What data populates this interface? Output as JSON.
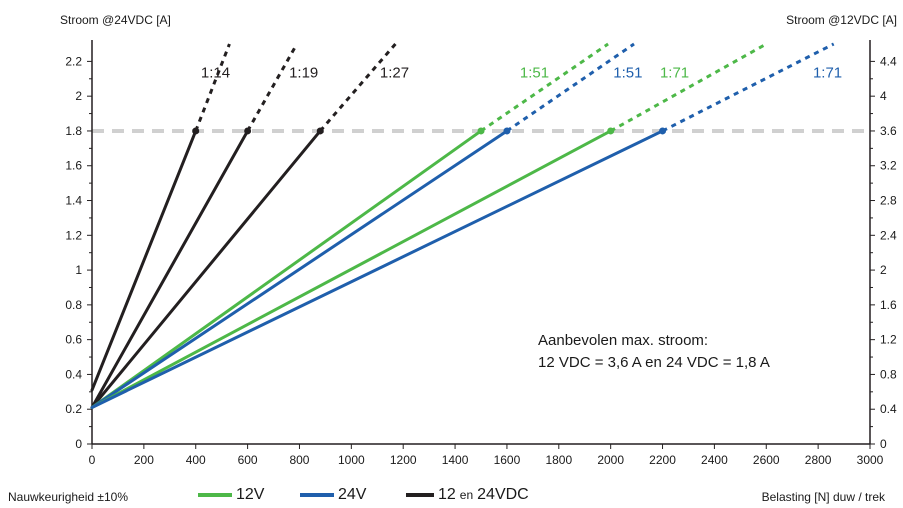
{
  "labels": {
    "left_axis_title": "Stroom @24VDC [A]",
    "right_axis_title": "Stroom @12VDC [A]",
    "x_axis_title": "Belasting [N] duw / trek",
    "accuracy_note": "Nauwkeurigheid ±10%"
  },
  "annotation": {
    "line1": "Aanbevolen max. stroom:",
    "line2": "12 VDC = 3,6 A en 24 VDC = 1,8 A"
  },
  "legend": [
    {
      "label": "12V",
      "color": "#4db848"
    },
    {
      "label": "24V",
      "color": "#1f5fac"
    },
    {
      "label": "12",
      "small": "en",
      "suffix": "24VDC",
      "color": "#231f20"
    }
  ],
  "chart_data": {
    "type": "line",
    "xlim": [
      0,
      3000
    ],
    "ylim_left": [
      0,
      2.3
    ],
    "ylim_right": [
      0,
      4.6
    ],
    "x_ticks": [
      "0",
      "200",
      "400",
      "600",
      "800",
      "1000",
      "1200",
      "1400",
      "1600",
      "1800",
      "2000",
      "2200",
      "2400",
      "2600",
      "2800",
      "3000"
    ],
    "y_ticks_left": [
      "0",
      "0.2",
      "0.4",
      "0.6",
      "0.8",
      "1",
      "1.2",
      "1.4",
      "1.6",
      "1.8",
      "2",
      "2.2"
    ],
    "y_ticks_right": [
      "0",
      "0.4",
      "0.8",
      "1.2",
      "1.6",
      "2",
      "2.4",
      "2.8",
      "3.2",
      "3.6",
      "4",
      "4.4"
    ],
    "max_current_line": 1.8,
    "grid": false,
    "series": [
      {
        "name": "1:14",
        "group": "12 en 24VDC",
        "color": "#231f20",
        "solid": [
          [
            0,
            0.31
          ],
          [
            400,
            1.8
          ]
        ],
        "dashed": [
          [
            400,
            1.8
          ],
          [
            530,
            2.3
          ]
        ],
        "label_at": [
          420,
          2.13
        ]
      },
      {
        "name": "1:19",
        "group": "12 en 24VDC",
        "color": "#231f20",
        "solid": [
          [
            0,
            0.21
          ],
          [
            600,
            1.8
          ]
        ],
        "dashed": [
          [
            600,
            1.8
          ],
          [
            790,
            2.3
          ]
        ],
        "label_at": [
          760,
          2.13
        ]
      },
      {
        "name": "1:27",
        "group": "12 en 24VDC",
        "color": "#231f20",
        "solid": [
          [
            0,
            0.21
          ],
          [
            880,
            1.8
          ]
        ],
        "dashed": [
          [
            880,
            1.8
          ],
          [
            1170,
            2.3
          ]
        ],
        "label_at": [
          1110,
          2.13
        ]
      },
      {
        "name": "1:51",
        "group": "12V",
        "color": "#4db848",
        "solid": [
          [
            0,
            0.21
          ],
          [
            1500,
            1.8
          ]
        ],
        "dashed": [
          [
            1500,
            1.8
          ],
          [
            1990,
            2.3
          ]
        ],
        "label_at": [
          1650,
          2.13
        ]
      },
      {
        "name": "1:51",
        "group": "24V",
        "color": "#1f5fac",
        "solid": [
          [
            0,
            0.21
          ],
          [
            1600,
            1.8
          ]
        ],
        "dashed": [
          [
            1600,
            1.8
          ],
          [
            2090,
            2.3
          ]
        ],
        "label_at": [
          2010,
          2.13
        ]
      },
      {
        "name": "1:71",
        "group": "12V",
        "color": "#4db848",
        "solid": [
          [
            0,
            0.21
          ],
          [
            2000,
            1.8
          ]
        ],
        "dashed": [
          [
            2000,
            1.8
          ],
          [
            2600,
            2.3
          ]
        ],
        "label_at": [
          2190,
          2.13
        ]
      },
      {
        "name": "1:71",
        "group": "24V",
        "color": "#1f5fac",
        "solid": [
          [
            0,
            0.21
          ],
          [
            2200,
            1.8
          ]
        ],
        "dashed": [
          [
            2200,
            1.8
          ],
          [
            2860,
            2.3
          ]
        ],
        "label_at": [
          2780,
          2.13
        ]
      }
    ]
  }
}
